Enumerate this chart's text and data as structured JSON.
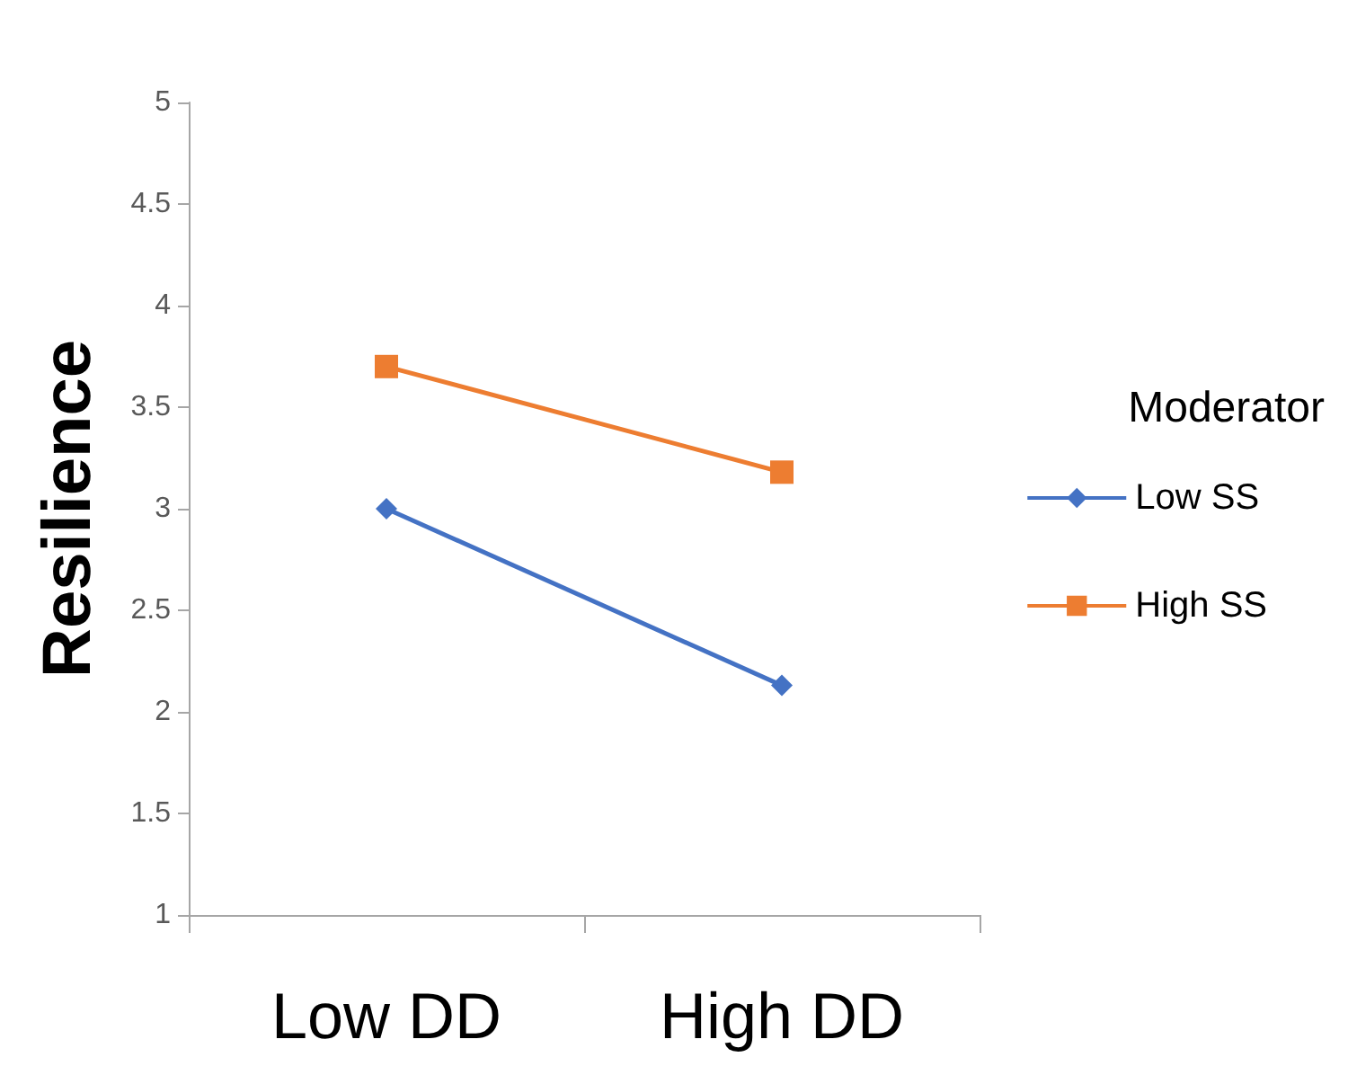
{
  "chart_data": {
    "type": "line",
    "ylabel": "Resilience",
    "legend_title": "Moderator",
    "categories": [
      "Low DD",
      "High DD"
    ],
    "series": [
      {
        "name": "Low SS",
        "color": "#4472c4",
        "marker": "diamond",
        "values": [
          3.0,
          2.13
        ]
      },
      {
        "name": "High SS",
        "color": "#ed7d31",
        "marker": "square",
        "values": [
          3.7,
          3.18
        ]
      }
    ],
    "ylim": [
      1,
      5
    ],
    "yticks": [
      1,
      1.5,
      2,
      2.5,
      3,
      3.5,
      4,
      4.5,
      5
    ],
    "grid": false,
    "legend": "right"
  }
}
